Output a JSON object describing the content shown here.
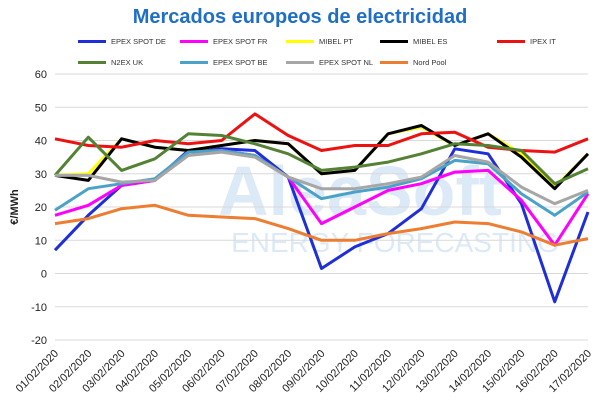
{
  "chart_data": {
    "type": "line",
    "title": "Mercados europeos de electricidad",
    "ylabel": "€/MWh",
    "xlabel": "",
    "ylim": [
      -20,
      60
    ],
    "yticks": [
      -20,
      -10,
      0,
      10,
      20,
      30,
      40,
      50,
      60
    ],
    "grid": true,
    "legend_position": "top",
    "watermark": {
      "line1": "AleaSoft",
      "line2": "ENERGY FORECASTING"
    },
    "categories": [
      "01/02/2020",
      "02/02/2020",
      "03/02/2020",
      "04/02/2020",
      "05/02/2020",
      "06/02/2020",
      "07/02/2020",
      "08/02/2020",
      "09/02/2020",
      "10/02/2020",
      "11/02/2020",
      "12/02/2020",
      "13/02/2020",
      "14/02/2020",
      "15/02/2020",
      "16/02/2020",
      "17/02/2020"
    ],
    "series": [
      {
        "name": "EPEX SPOT DE",
        "color": "#1f2fd8",
        "values": [
          7,
          17.5,
          26.5,
          28,
          37,
          37.5,
          37,
          29,
          1.5,
          8,
          12,
          19.5,
          37.5,
          36,
          21,
          -8.5,
          18.5
        ]
      },
      {
        "name": "EPEX SPOT FR",
        "color": "#ff00ff",
        "values": [
          17.5,
          20.5,
          26.5,
          28,
          36.5,
          37,
          35.5,
          29,
          15,
          20,
          25,
          27,
          30.5,
          31,
          22,
          8.5,
          24
        ]
      },
      {
        "name": "MIBEL PT",
        "color": "#ffff00",
        "values": [
          29.5,
          30,
          40.5,
          38,
          37,
          38.5,
          40,
          39,
          30,
          31,
          42,
          44,
          38.5,
          42,
          36,
          26,
          36
        ]
      },
      {
        "name": "MIBEL ES",
        "color": "#000000",
        "values": [
          29.5,
          28,
          40.5,
          38,
          37,
          38.5,
          40,
          39,
          30,
          31,
          42,
          44.5,
          38.5,
          42,
          35,
          25.5,
          36
        ]
      },
      {
        "name": "IPEX IT",
        "color": "#ee1111",
        "values": [
          40.5,
          38.5,
          38,
          40,
          39,
          40,
          48,
          41.5,
          37,
          38.5,
          38.5,
          42,
          42.5,
          38,
          37,
          36.5,
          40.5
        ]
      },
      {
        "name": "N2EX UK",
        "color": "#548235",
        "values": [
          29.5,
          41,
          31,
          34.5,
          42,
          41.5,
          39,
          36,
          31,
          32,
          33.5,
          36,
          39,
          38.5,
          37,
          27,
          31.5
        ]
      },
      {
        "name": "EPEX SPOT BE",
        "color": "#4aa3c7",
        "values": [
          19,
          25.5,
          27,
          28.5,
          36.5,
          37,
          35.5,
          29,
          22.5,
          24.5,
          26,
          28.5,
          34,
          33,
          24,
          17.5,
          24.5
        ]
      },
      {
        "name": "EPEX SPOT NL",
        "color": "#a6a6a6",
        "values": [
          29.5,
          29.5,
          27.5,
          28,
          35.5,
          36.5,
          35,
          29,
          25.5,
          25.5,
          27,
          29,
          35.5,
          33.5,
          26,
          21,
          25
        ]
      },
      {
        "name": "Nord Pool",
        "color": "#ed7d31",
        "values": [
          15,
          16.5,
          19.5,
          20.5,
          17.5,
          17,
          16.5,
          13.5,
          10,
          10,
          12,
          13.5,
          15.5,
          15,
          12.5,
          8.5,
          10.5
        ]
      }
    ]
  }
}
